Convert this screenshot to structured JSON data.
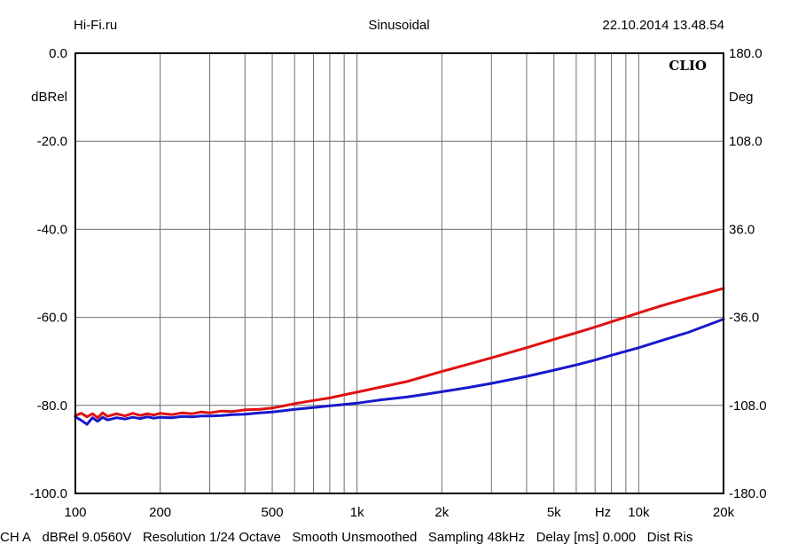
{
  "header": {
    "left": "Hi-Fi.ru",
    "center": "Sinusoidal",
    "right": "22.10.2014 13.48.54"
  },
  "chart_data": {
    "type": "line",
    "brand": "CLIO",
    "x_scale": "log",
    "xlim": [
      100,
      20000
    ],
    "x_ticks": [
      {
        "value": 100,
        "label": "100"
      },
      {
        "value": 200,
        "label": "200"
      },
      {
        "value": 500,
        "label": "500"
      },
      {
        "value": 1000,
        "label": "1k"
      },
      {
        "value": 2000,
        "label": "2k"
      },
      {
        "value": 5000,
        "label": "5k"
      },
      {
        "value": 10000,
        "label": "10k"
      },
      {
        "value": 20000,
        "label": "20k"
      }
    ],
    "x_unit_label": "Hz",
    "y_left": {
      "label": "dBRel",
      "ylim": [
        -100,
        0
      ],
      "ticks": [
        {
          "value": 0,
          "label": "0.0"
        },
        {
          "value": -20,
          "label": "-20.0"
        },
        {
          "value": -40,
          "label": "-40.0"
        },
        {
          "value": -60,
          "label": "-60.0"
        },
        {
          "value": -80,
          "label": "-80.0"
        },
        {
          "value": -100,
          "label": "-100.0"
        }
      ]
    },
    "y_right": {
      "label": "Deg",
      "ylim": [
        -180,
        180
      ],
      "ticks": [
        {
          "value": 180,
          "label": "180.0"
        },
        {
          "value": 108,
          "label": "108.0"
        },
        {
          "value": 36,
          "label": "36.0"
        },
        {
          "value": -36,
          "label": "-36.0"
        },
        {
          "value": -108,
          "label": "-108.0"
        },
        {
          "value": -180,
          "label": "-180.0"
        }
      ]
    },
    "grid": true,
    "series": [
      {
        "color": "#e01010",
        "x": [
          100,
          105,
          110,
          115,
          120,
          125,
          130,
          140,
          150,
          160,
          170,
          180,
          190,
          200,
          220,
          240,
          260,
          280,
          300,
          330,
          360,
          400,
          450,
          500,
          550,
          600,
          700,
          800,
          900,
          1000,
          1200,
          1500,
          1700,
          2000,
          2500,
          3000,
          4000,
          5000,
          6000,
          7000,
          8000,
          10000,
          12000,
          15000,
          20000
        ],
        "y": [
          -82.3,
          -81.8,
          -82.6,
          -81.9,
          -82.8,
          -81.7,
          -82.5,
          -81.9,
          -82.4,
          -81.8,
          -82.3,
          -81.9,
          -82.2,
          -81.8,
          -82.1,
          -81.7,
          -81.9,
          -81.5,
          -81.7,
          -81.3,
          -81.4,
          -81.0,
          -80.9,
          -80.6,
          -80.1,
          -79.6,
          -78.9,
          -78.3,
          -77.6,
          -77.0,
          -75.9,
          -74.6,
          -73.6,
          -72.3,
          -70.6,
          -69.2,
          -66.9,
          -65.0,
          -63.5,
          -62.2,
          -61.0,
          -59.0,
          -57.4,
          -55.6,
          -53.4
        ]
      },
      {
        "color": "#1818cc",
        "x": [
          100,
          105,
          110,
          115,
          120,
          125,
          130,
          140,
          150,
          160,
          170,
          180,
          190,
          200,
          220,
          240,
          260,
          280,
          300,
          330,
          360,
          400,
          450,
          500,
          550,
          600,
          700,
          800,
          900,
          1000,
          1200,
          1500,
          1700,
          2000,
          2500,
          3000,
          4000,
          5000,
          6000,
          7000,
          8000,
          10000,
          12000,
          15000,
          20000
        ],
        "y": [
          -82.6,
          -83.4,
          -84.3,
          -82.8,
          -83.6,
          -82.7,
          -83.3,
          -82.8,
          -83.1,
          -82.7,
          -83.0,
          -82.6,
          -82.9,
          -82.7,
          -82.8,
          -82.5,
          -82.6,
          -82.4,
          -82.4,
          -82.3,
          -82.1,
          -82.0,
          -81.7,
          -81.5,
          -81.2,
          -80.9,
          -80.5,
          -80.1,
          -79.8,
          -79.5,
          -78.8,
          -78.1,
          -77.6,
          -76.9,
          -75.9,
          -75.0,
          -73.4,
          -72.0,
          -70.8,
          -69.7,
          -68.6,
          -66.9,
          -65.3,
          -63.4,
          -60.4
        ]
      }
    ]
  },
  "footer": {
    "items": [
      "CH A",
      "dBRel 9.0560V",
      "Resolution 1/24 Octave",
      "Smooth Unsmoothed",
      "Sampling 48kHz",
      "Delay [ms] 0.000",
      "Dist Ris"
    ]
  }
}
